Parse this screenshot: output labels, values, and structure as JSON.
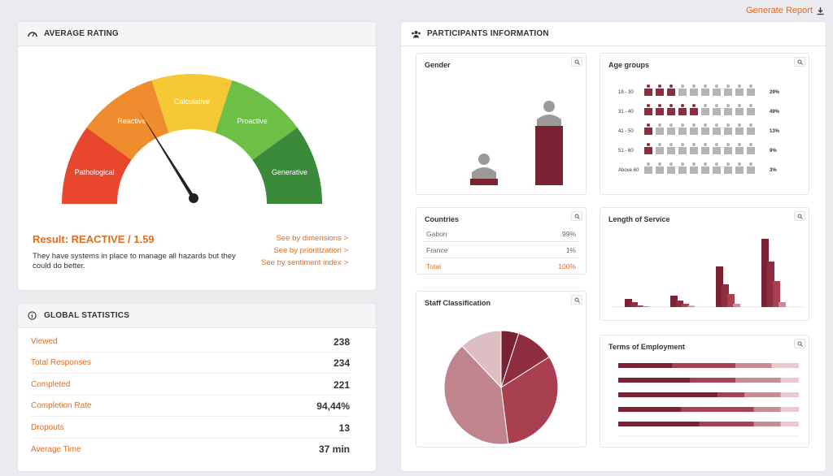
{
  "header": {
    "generate_report": "Generate Report"
  },
  "rating": {
    "title": "AVERAGE RATING",
    "gauge_segments": [
      "Pathological",
      "Reactive",
      "Calculative",
      "Proactive",
      "Generative"
    ],
    "gauge_colors": [
      "#e8472e",
      "#ef8c2e",
      "#f5c935",
      "#6dbf45",
      "#3b8a3a"
    ],
    "result": "Result: REACTIVE / 1.59",
    "description": "They have systems in place to manage all hazards but they could do better.",
    "links": [
      "See by dimensions >",
      "See by prioritization >",
      "See by sentiment index >"
    ]
  },
  "stats": {
    "title": "GLOBAL STATISTICS",
    "rows": [
      {
        "label": "Viewed",
        "value": "238"
      },
      {
        "label": "Total Responses",
        "value": "234"
      },
      {
        "label": "Completed",
        "value": "221"
      },
      {
        "label": "Completion Rate",
        "value": "94,44%"
      },
      {
        "label": "Dropouts",
        "value": "13"
      },
      {
        "label": "Average Time",
        "value": "37 min"
      }
    ]
  },
  "participants": {
    "title": "PARTICIPANTS INFORMATION",
    "gender": {
      "title": "Gender"
    },
    "countries": {
      "title": "Countries",
      "rows": [
        {
          "label": "Gabon",
          "value": "99%"
        },
        {
          "label": "France",
          "value": "1%"
        },
        {
          "label": "Total",
          "value": "100%"
        }
      ]
    },
    "staff": {
      "title": "Staff Classification"
    },
    "age": {
      "title": "Age groups",
      "rows": [
        {
          "label": "18 - 30",
          "value": "29%",
          "filled": 3
        },
        {
          "label": "31 - 40",
          "value": "49%",
          "filled": 5
        },
        {
          "label": "41 - 50",
          "value": "13%",
          "filled": 1
        },
        {
          "label": "51 - 60",
          "value": "9%",
          "filled": 1
        },
        {
          "label": "Above 60",
          "value": "3%",
          "filled": 0
        }
      ]
    },
    "service": {
      "title": "Length of Service"
    },
    "terms": {
      "title": "Terms of Employment"
    }
  },
  "chart_data": [
    {
      "type": "bar",
      "title": "Gender",
      "series": [
        {
          "values": [
            8,
            73
          ]
        }
      ]
    },
    {
      "type": "pie",
      "title": "Staff Classification",
      "values": [
        5,
        11,
        32,
        40,
        12
      ],
      "colors": [
        "#7a2233",
        "#8e2c40",
        "#a8404f",
        "#c0848d",
        "#ddbfc3"
      ]
    },
    {
      "type": "bar",
      "title": "Length of Service",
      "series": [
        {
          "values": [
            5,
            7,
            25,
            42
          ]
        },
        {
          "values": [
            3,
            4,
            14,
            28
          ]
        },
        {
          "values": [
            1,
            2,
            8,
            16
          ]
        },
        {
          "values": [
            0.5,
            0.8,
            2,
            3
          ]
        }
      ]
    },
    {
      "type": "bar",
      "title": "Terms of Employment",
      "series": [
        {
          "values": [
            30,
            40,
            55,
            35,
            45
          ]
        },
        {
          "values": [
            35,
            25,
            15,
            40,
            30
          ]
        },
        {
          "values": [
            20,
            25,
            20,
            15,
            15
          ]
        },
        {
          "values": [
            15,
            10,
            10,
            10,
            10
          ]
        }
      ],
      "colors": [
        "#7a2233",
        "#a8404f",
        "#c98a93",
        "#e8c9cd"
      ]
    }
  ]
}
